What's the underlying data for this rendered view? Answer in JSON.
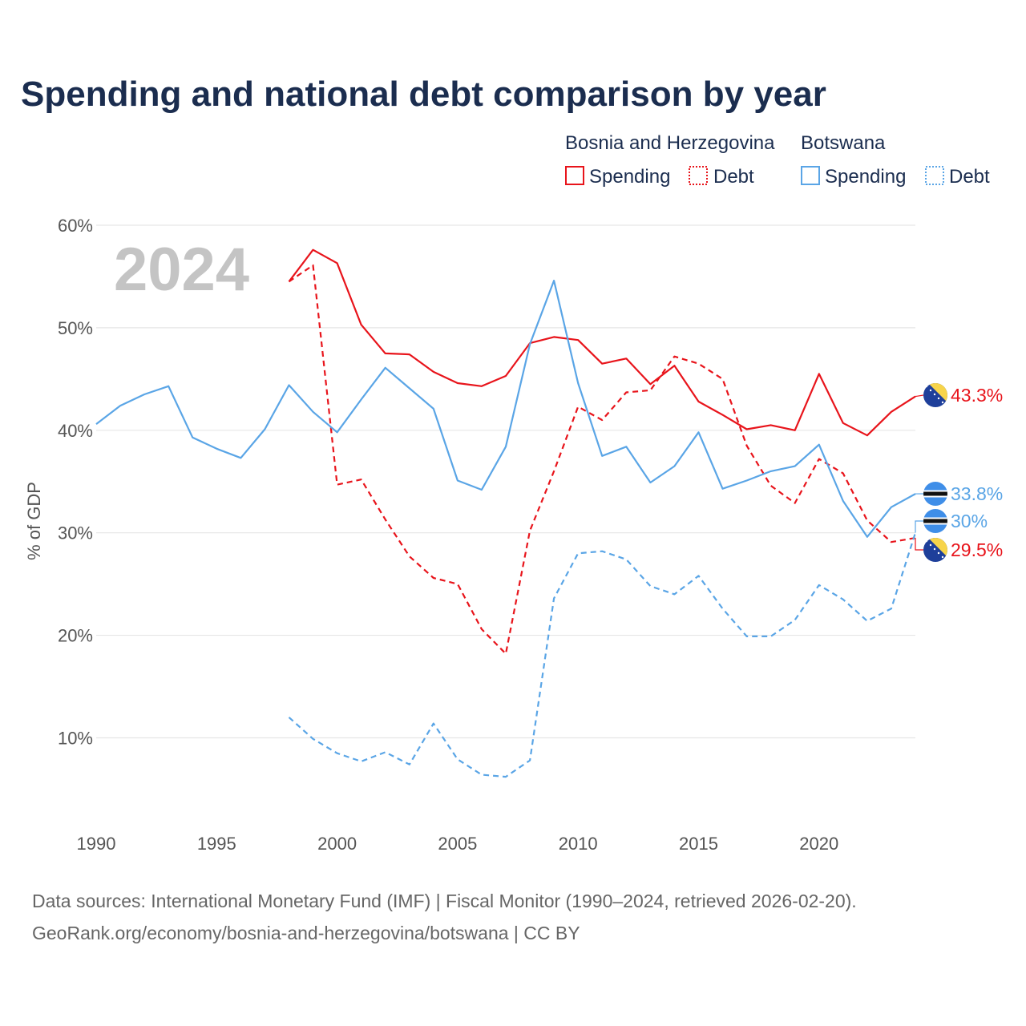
{
  "chart_data": {
    "type": "line",
    "title": "Spending and national debt comparison by year",
    "ylabel": "% of GDP",
    "xlabel": "",
    "current_year": "2024",
    "xlim": [
      1990,
      2024
    ],
    "ylim": [
      3,
      60
    ],
    "yticks": [
      10,
      20,
      30,
      40,
      50,
      60
    ],
    "ytick_labels": [
      "10%",
      "20%",
      "30%",
      "40%",
      "50%",
      "60%"
    ],
    "xticks": [
      1990,
      1995,
      2000,
      2005,
      2010,
      2015,
      2020
    ],
    "xtick_labels": [
      "1990",
      "1995",
      "2000",
      "2005",
      "2010",
      "2015",
      "2020"
    ],
    "legend": {
      "groups": [
        {
          "country": "Bosnia and Herzegovina",
          "color": "#e8141b",
          "entries": [
            "Spending",
            "Debt"
          ]
        },
        {
          "country": "Botswana",
          "color": "#5aa5e6",
          "entries": [
            "Spending",
            "Debt"
          ]
        }
      ]
    },
    "series": [
      {
        "name": "Bosnia and Herzegovina Spending",
        "country": "Bosnia and Herzegovina",
        "style": "solid",
        "color": "#e8141b",
        "end_label": "43.3%",
        "x": [
          1998,
          1999,
          2000,
          2001,
          2002,
          2003,
          2004,
          2005,
          2006,
          2007,
          2008,
          2009,
          2010,
          2011,
          2012,
          2013,
          2014,
          2015,
          2016,
          2017,
          2018,
          2019,
          2020,
          2021,
          2022,
          2023,
          2024
        ],
        "values": [
          54.5,
          57.6,
          56.3,
          50.3,
          47.5,
          47.4,
          45.7,
          44.6,
          44.3,
          45.3,
          48.5,
          49.1,
          48.8,
          46.5,
          47.0,
          44.5,
          46.3,
          42.8,
          41.5,
          40.1,
          40.5,
          40.0,
          45.5,
          40.7,
          39.5,
          41.8,
          43.3
        ]
      },
      {
        "name": "Bosnia and Herzegovina Debt",
        "country": "Bosnia and Herzegovina",
        "style": "dashed",
        "color": "#e8141b",
        "end_label": "29.5%",
        "x": [
          1998,
          1999,
          2000,
          2001,
          2002,
          2003,
          2004,
          2005,
          2006,
          2007,
          2008,
          2009,
          2010,
          2011,
          2012,
          2013,
          2014,
          2015,
          2016,
          2017,
          2018,
          2019,
          2020,
          2021,
          2022,
          2023,
          2024
        ],
        "values": [
          54.5,
          56.1,
          34.7,
          35.2,
          31.3,
          27.7,
          25.6,
          25.0,
          20.6,
          18.2,
          30.2,
          36.0,
          42.3,
          41.0,
          43.7,
          43.9,
          47.2,
          46.5,
          45.0,
          38.5,
          34.6,
          32.9,
          37.2,
          35.8,
          31.2,
          29.1,
          29.5
        ]
      },
      {
        "name": "Botswana Spending",
        "country": "Botswana",
        "style": "solid",
        "color": "#5aa5e6",
        "end_label": "33.8%",
        "x": [
          1990,
          1991,
          1992,
          1993,
          1994,
          1995,
          1996,
          1997,
          1998,
          1999,
          2000,
          2001,
          2002,
          2003,
          2004,
          2005,
          2006,
          2007,
          2008,
          2009,
          2010,
          2011,
          2012,
          2013,
          2014,
          2015,
          2016,
          2017,
          2018,
          2019,
          2020,
          2021,
          2022,
          2023,
          2024
        ],
        "values": [
          40.6,
          42.4,
          43.5,
          44.3,
          39.3,
          38.2,
          37.3,
          40.1,
          44.4,
          41.8,
          39.8,
          43.0,
          46.1,
          44.1,
          42.1,
          35.1,
          34.2,
          38.4,
          48.4,
          54.6,
          44.6,
          37.5,
          38.4,
          34.9,
          36.5,
          39.8,
          34.3,
          35.1,
          36.0,
          36.5,
          38.6,
          33.1,
          29.6,
          32.5,
          33.8
        ]
      },
      {
        "name": "Botswana Debt",
        "country": "Botswana",
        "style": "dashed",
        "color": "#5aa5e6",
        "end_label": "30%",
        "x": [
          1998,
          1999,
          2000,
          2001,
          2002,
          2003,
          2004,
          2005,
          2006,
          2007,
          2008,
          2009,
          2010,
          2011,
          2012,
          2013,
          2014,
          2015,
          2016,
          2017,
          2018,
          2019,
          2020,
          2021,
          2022,
          2023,
          2024
        ],
        "values": [
          12.0,
          9.9,
          8.5,
          7.7,
          8.6,
          7.4,
          11.4,
          7.9,
          6.4,
          6.2,
          7.8,
          23.6,
          28.0,
          28.2,
          27.4,
          24.8,
          24.0,
          25.8,
          22.6,
          19.9,
          19.9,
          21.5,
          24.9,
          23.5,
          21.4,
          22.6,
          30.0
        ]
      }
    ]
  },
  "footer": {
    "source_line": "Data sources: International Monetary Fund (IMF) | Fiscal Monitor (1990–2024, retrieved 2026-02-20).",
    "credit_line": "GeoRank.org/economy/bosnia-and-herzegovina/botswana | CC BY"
  }
}
